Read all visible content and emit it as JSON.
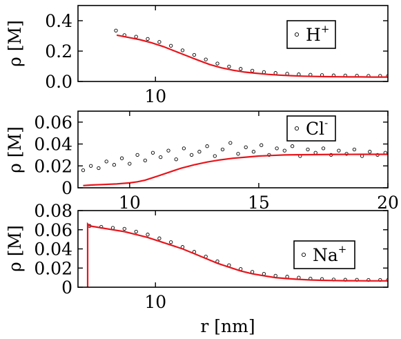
{
  "colors": {
    "model": "#e8141a",
    "points": "#000000"
  },
  "figure": {
    "xlabel": "r [nm]"
  },
  "chart_data": [
    {
      "type": "scatter",
      "ylabel": "ρ [M]",
      "legend": {
        "label": "H",
        "sup": "+",
        "placement": "top-right"
      },
      "xlim": [
        8.0,
        16.0
      ],
      "ylim": [
        0.0,
        0.5
      ],
      "xticks": [
        {
          "v": 10,
          "label": "10"
        }
      ],
      "yticks": [
        {
          "v": 0.0,
          "label": "0.0"
        },
        {
          "v": 0.2,
          "label": "0.2"
        },
        {
          "v": 0.4,
          "label": "0.4"
        }
      ],
      "grid": false,
      "series": [
        {
          "kind": "points",
          "x": [
            8.98,
            9.2,
            9.5,
            9.8,
            10.1,
            10.4,
            10.7,
            11.0,
            11.3,
            11.6,
            11.9,
            12.2,
            12.5,
            12.8,
            13.1,
            13.4,
            13.7,
            14.0,
            14.3,
            14.6,
            14.9,
            15.2,
            15.5,
            15.8,
            16.0
          ],
          "y": [
            0.335,
            0.305,
            0.295,
            0.28,
            0.26,
            0.235,
            0.205,
            0.175,
            0.145,
            0.118,
            0.098,
            0.083,
            0.071,
            0.062,
            0.056,
            0.051,
            0.047,
            0.044,
            0.042,
            0.04,
            0.039,
            0.038,
            0.037,
            0.037,
            0.036
          ]
        },
        {
          "kind": "line",
          "x": [
            9.0,
            9.3,
            9.6,
            9.9,
            10.2,
            10.5,
            10.8,
            11.1,
            11.4,
            11.7,
            12.0,
            12.3,
            12.6,
            12.9,
            13.2,
            13.5,
            13.8,
            14.1,
            14.4,
            14.7,
            15.0,
            15.3,
            15.6,
            16.0
          ],
          "y": [
            0.305,
            0.29,
            0.275,
            0.255,
            0.23,
            0.2,
            0.17,
            0.14,
            0.112,
            0.09,
            0.074,
            0.062,
            0.054,
            0.047,
            0.042,
            0.038,
            0.035,
            0.033,
            0.032,
            0.031,
            0.03,
            0.03,
            0.029,
            0.029
          ]
        }
      ]
    },
    {
      "type": "scatter",
      "ylabel": "ρ [M]",
      "legend": {
        "label": "Cl",
        "sup": "-",
        "placement": "top-right"
      },
      "xlim": [
        8.0,
        20.0
      ],
      "ylim": [
        0.0,
        0.07
      ],
      "xticks": [
        {
          "v": 10,
          "label": "10"
        },
        {
          "v": 15,
          "label": "15"
        },
        {
          "v": 20,
          "label": "20"
        }
      ],
      "yticks": [
        {
          "v": 0.0,
          "label": "0"
        },
        {
          "v": 0.02,
          "label": "0.02"
        },
        {
          "v": 0.04,
          "label": "0.04"
        },
        {
          "v": 0.06,
          "label": "0.06"
        }
      ],
      "grid": false,
      "series": [
        {
          "kind": "points",
          "x": [
            8.2,
            8.5,
            8.8,
            9.1,
            9.4,
            9.7,
            10.0,
            10.3,
            10.6,
            10.9,
            11.2,
            11.5,
            11.8,
            12.1,
            12.4,
            12.7,
            13.0,
            13.3,
            13.6,
            13.9,
            14.2,
            14.5,
            14.8,
            15.1,
            15.4,
            15.7,
            16.0,
            16.3,
            16.6,
            16.9,
            17.2,
            17.5,
            17.8,
            18.1,
            18.4,
            18.7,
            19.0,
            19.3,
            19.6,
            19.9
          ],
          "y": [
            0.016,
            0.02,
            0.018,
            0.024,
            0.021,
            0.027,
            0.022,
            0.03,
            0.025,
            0.032,
            0.028,
            0.034,
            0.026,
            0.036,
            0.03,
            0.033,
            0.038,
            0.029,
            0.035,
            0.041,
            0.031,
            0.037,
            0.033,
            0.039,
            0.03,
            0.036,
            0.034,
            0.038,
            0.029,
            0.035,
            0.032,
            0.036,
            0.03,
            0.034,
            0.031,
            0.035,
            0.029,
            0.033,
            0.03,
            0.032
          ]
        },
        {
          "kind": "line",
          "x": [
            8.2,
            8.5,
            9.0,
            9.5,
            10.0,
            10.3,
            10.6,
            11.0,
            11.5,
            12.0,
            12.5,
            13.0,
            13.5,
            14.0,
            14.5,
            15.0,
            15.5,
            16.0,
            16.5,
            17.0,
            18.0,
            19.0,
            20.0
          ],
          "y": [
            0.002,
            0.0025,
            0.003,
            0.0035,
            0.0045,
            0.0055,
            0.007,
            0.01,
            0.014,
            0.018,
            0.021,
            0.0235,
            0.0255,
            0.027,
            0.028,
            0.029,
            0.0295,
            0.03,
            0.0302,
            0.0303,
            0.0305,
            0.0306,
            0.0306
          ]
        }
      ]
    },
    {
      "type": "scatter",
      "ylabel": "ρ [M]",
      "legend": {
        "label": "Na",
        "sup": "+",
        "placement": "right"
      },
      "xlim": [
        8.0,
        16.0
      ],
      "ylim": [
        0.0,
        0.08
      ],
      "xticks": [
        {
          "v": 10,
          "label": "10"
        }
      ],
      "yticks": [
        {
          "v": 0.0,
          "label": "0"
        },
        {
          "v": 0.02,
          "label": "0.02"
        },
        {
          "v": 0.04,
          "label": "0.04"
        },
        {
          "v": 0.06,
          "label": "0.06"
        },
        {
          "v": 0.08,
          "label": "0.08"
        }
      ],
      "grid": false,
      "series": [
        {
          "kind": "points",
          "x": [
            8.3,
            8.6,
            8.9,
            9.2,
            9.5,
            9.8,
            10.1,
            10.4,
            10.7,
            11.0,
            11.3,
            11.6,
            11.9,
            12.2,
            12.5,
            12.8,
            13.1,
            13.4,
            13.7,
            14.0,
            14.3,
            14.6,
            14.9,
            15.2,
            15.5,
            15.8,
            16.0
          ],
          "y": [
            0.064,
            0.063,
            0.062,
            0.061,
            0.058,
            0.055,
            0.051,
            0.047,
            0.042,
            0.037,
            0.032,
            0.027,
            0.023,
            0.019,
            0.016,
            0.014,
            0.012,
            0.011,
            0.01,
            0.009,
            0.0085,
            0.008,
            0.0078,
            0.0077,
            0.0076,
            0.0076,
            0.0075
          ]
        },
        {
          "kind": "line",
          "x": [
            8.25,
            8.25,
            8.3,
            8.6,
            8.9,
            9.2,
            9.5,
            9.8,
            10.1,
            10.4,
            10.7,
            11.0,
            11.3,
            11.6,
            11.9,
            12.2,
            12.5,
            12.8,
            13.1,
            13.4,
            13.7,
            14.0,
            14.3,
            14.6,
            14.9,
            15.2,
            15.5,
            15.8,
            16.0
          ],
          "y": [
            0.0,
            0.066,
            0.064,
            0.062,
            0.06,
            0.058,
            0.055,
            0.052,
            0.048,
            0.044,
            0.04,
            0.035,
            0.03,
            0.025,
            0.021,
            0.017,
            0.014,
            0.012,
            0.01,
            0.009,
            0.0082,
            0.0076,
            0.0072,
            0.007,
            0.0068,
            0.0067,
            0.0066,
            0.0066,
            0.0066
          ]
        }
      ]
    }
  ]
}
